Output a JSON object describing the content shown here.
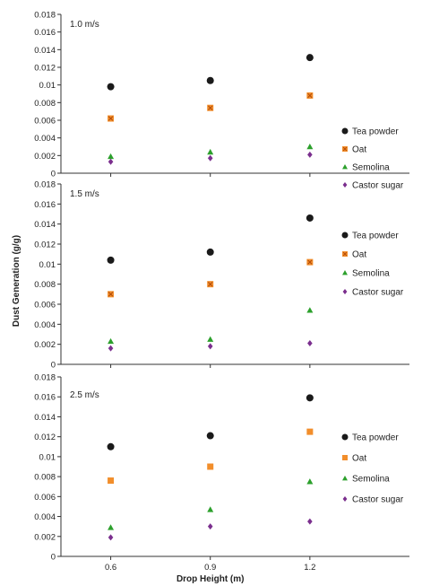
{
  "chart_data": [
    {
      "type": "scatter",
      "title": "1.0 m/s",
      "x": [
        0.6,
        0.9,
        1.2
      ],
      "ylim": [
        0,
        0.018
      ],
      "yticks": [
        "0",
        "0.002",
        "0.004",
        "0.006",
        "0.008",
        "0.01",
        "0.012",
        "0.014",
        "0.016",
        "0.018"
      ],
      "legend_position": "right",
      "series": [
        {
          "name": "Tea powder",
          "values": [
            0.0098,
            0.0105,
            0.0131
          ],
          "color": "#1a1a1a",
          "marker": "circle"
        },
        {
          "name": "Oat",
          "values": [
            0.0062,
            0.0074,
            0.0088
          ],
          "color": "#f28e2b",
          "marker": "square-x"
        },
        {
          "name": "Semolina",
          "values": [
            0.0019,
            0.0024,
            0.003
          ],
          "color": "#2ca02c",
          "marker": "triangle"
        },
        {
          "name": "Castor sugar",
          "values": [
            0.0013,
            0.0017,
            0.0021
          ],
          "color": "#7b2f8e",
          "marker": "diamond"
        }
      ]
    },
    {
      "type": "scatter",
      "title": "1.5 m/s",
      "x": [
        0.6,
        0.9,
        1.2
      ],
      "ylim": [
        0,
        0.018
      ],
      "yticks": [
        "0",
        "0.002",
        "0.004",
        "0.006",
        "0.008",
        "0.01",
        "0.012",
        "0.014",
        "0.016",
        "0.018"
      ],
      "legend_position": "right",
      "series": [
        {
          "name": "Tea powder",
          "values": [
            0.0104,
            0.0112,
            0.0146
          ],
          "color": "#1a1a1a",
          "marker": "circle"
        },
        {
          "name": "Oat",
          "values": [
            0.007,
            0.008,
            0.0102
          ],
          "color": "#f28e2b",
          "marker": "square-x"
        },
        {
          "name": "Semolina",
          "values": [
            0.0023,
            0.0025,
            0.0054
          ],
          "color": "#2ca02c",
          "marker": "triangle"
        },
        {
          "name": "Castor sugar",
          "values": [
            0.0016,
            0.0018,
            0.0021
          ],
          "color": "#7b2f8e",
          "marker": "diamond"
        }
      ]
    },
    {
      "type": "scatter",
      "title": "2.5 m/s",
      "x": [
        0.6,
        0.9,
        1.2
      ],
      "xticks": [
        "0.6",
        "0.9",
        "1.2"
      ],
      "xlabel": "Drop Height (m)",
      "ylim": [
        0,
        0.018
      ],
      "yticks": [
        "0",
        "0.002",
        "0.004",
        "0.006",
        "0.008",
        "0.01",
        "0.012",
        "0.014",
        "0.016",
        "0.018"
      ],
      "legend_position": "right",
      "series": [
        {
          "name": "Tea powder",
          "values": [
            0.011,
            0.0121,
            0.0159
          ],
          "color": "#1a1a1a",
          "marker": "circle"
        },
        {
          "name": "Oat",
          "values": [
            0.0076,
            0.009,
            0.0125
          ],
          "color": "#f28e2b",
          "marker": "square"
        },
        {
          "name": "Semolina",
          "values": [
            0.0029,
            0.0047,
            0.0075
          ],
          "color": "#2ca02c",
          "marker": "triangle"
        },
        {
          "name": "Castor sugar",
          "values": [
            0.0019,
            0.003,
            0.0035
          ],
          "color": "#7b2f8e",
          "marker": "diamond"
        }
      ]
    }
  ],
  "ylabel": "Dust Generation  (g/g)"
}
